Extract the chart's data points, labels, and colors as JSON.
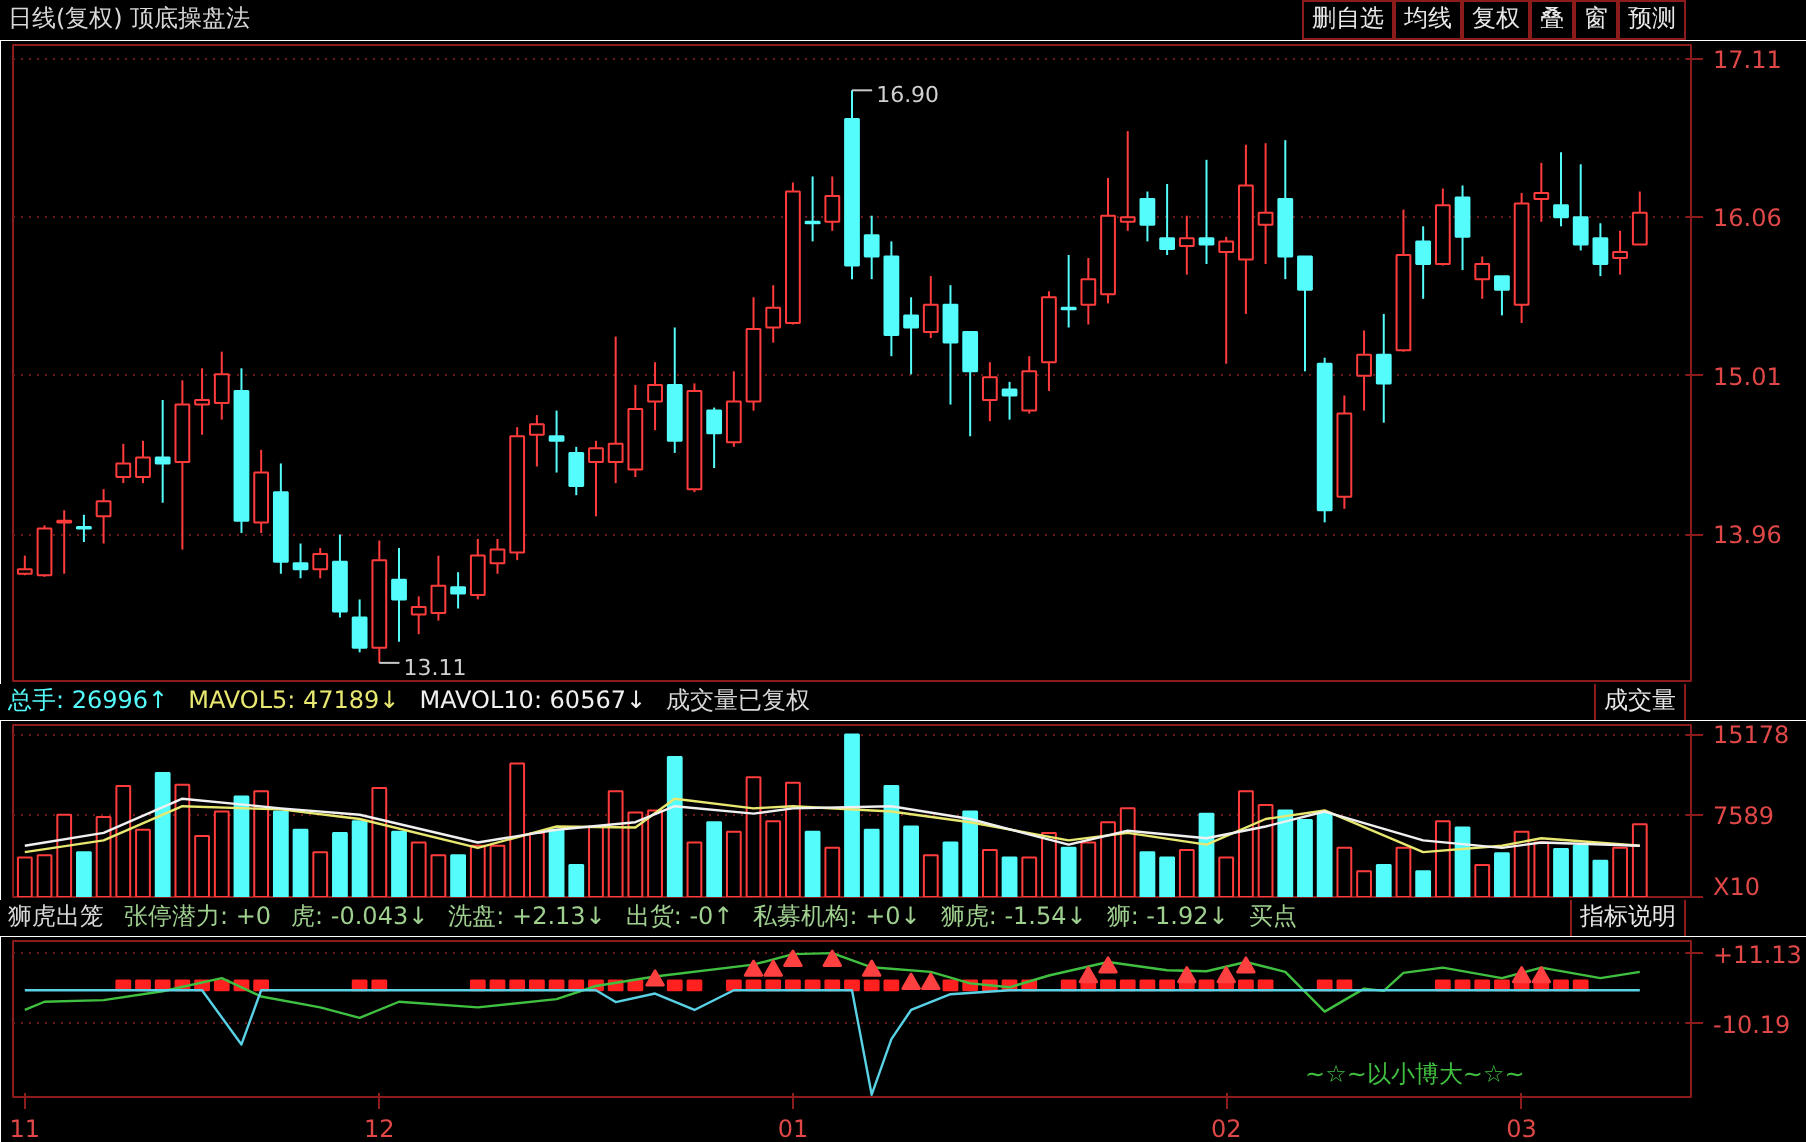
{
  "chart_data": [
    {
      "type": "candlestick",
      "title": "日线(复权) 顶底操盘法",
      "categories": [
        "11",
        null,
        null,
        null,
        null,
        null,
        null,
        null,
        null,
        null,
        null,
        null,
        null,
        null,
        null,
        null,
        null,
        null,
        "12",
        null,
        null,
        null,
        null,
        null,
        null,
        null,
        null,
        null,
        null,
        null,
        null,
        null,
        null,
        null,
        null,
        null,
        null,
        null,
        null,
        "01",
        null,
        null,
        null,
        null,
        null,
        null,
        null,
        null,
        null,
        null,
        null,
        null,
        null,
        null,
        null,
        null,
        null,
        null,
        null,
        null,
        null,
        "02",
        null,
        null,
        null,
        null,
        null,
        null,
        null,
        null,
        null,
        null,
        null,
        null,
        null,
        null,
        "03",
        null,
        null,
        null,
        null,
        null,
        null
      ],
      "ohlc": [
        [
          13.7,
          13.82,
          13.69,
          13.73
        ],
        [
          13.69,
          14.02,
          13.68,
          14.0
        ],
        [
          14.04,
          14.12,
          13.7,
          14.05
        ],
        [
          14.01,
          14.09,
          13.91,
          14.0
        ],
        [
          14.08,
          14.26,
          13.9,
          14.18
        ],
        [
          14.34,
          14.56,
          14.3,
          14.43
        ],
        [
          14.34,
          14.58,
          14.3,
          14.47
        ],
        [
          14.47,
          14.85,
          14.17,
          14.43
        ],
        [
          14.44,
          14.98,
          13.86,
          14.82
        ],
        [
          14.82,
          15.06,
          14.62,
          14.85
        ],
        [
          14.83,
          15.17,
          14.72,
          15.02
        ],
        [
          14.91,
          15.06,
          13.97,
          14.05
        ],
        [
          14.04,
          14.52,
          13.97,
          14.37
        ],
        [
          14.24,
          14.43,
          13.7,
          13.78
        ],
        [
          13.77,
          13.9,
          13.67,
          13.73
        ],
        [
          13.73,
          13.87,
          13.67,
          13.83
        ],
        [
          13.78,
          13.96,
          13.41,
          13.45
        ],
        [
          13.41,
          13.53,
          13.18,
          13.21
        ],
        [
          13.21,
          13.92,
          13.11,
          13.79
        ],
        [
          13.66,
          13.87,
          13.25,
          13.53
        ],
        [
          13.43,
          13.55,
          13.3,
          13.48
        ],
        [
          13.44,
          13.82,
          13.39,
          13.62
        ],
        [
          13.61,
          13.71,
          13.47,
          13.57
        ],
        [
          13.56,
          13.93,
          13.53,
          13.82
        ],
        [
          13.77,
          13.93,
          13.7,
          13.86
        ],
        [
          13.84,
          14.67,
          13.79,
          14.61
        ],
        [
          14.62,
          14.75,
          14.41,
          14.69
        ],
        [
          14.61,
          14.78,
          14.37,
          14.58
        ],
        [
          14.5,
          14.54,
          14.22,
          14.28
        ],
        [
          14.44,
          14.58,
          14.08,
          14.53
        ],
        [
          14.44,
          15.27,
          14.3,
          14.56
        ],
        [
          14.39,
          14.95,
          14.34,
          14.79
        ],
        [
          14.84,
          15.1,
          14.65,
          14.95
        ],
        [
          14.95,
          15.33,
          14.5,
          14.58
        ],
        [
          14.26,
          14.96,
          14.24,
          14.91
        ],
        [
          14.78,
          14.8,
          14.4,
          14.63
        ],
        [
          14.57,
          15.04,
          14.54,
          14.84
        ],
        [
          14.84,
          15.53,
          14.78,
          15.32
        ],
        [
          15.33,
          15.61,
          15.23,
          15.46
        ],
        [
          15.36,
          16.29,
          15.35,
          16.23
        ],
        [
          16.03,
          16.33,
          15.9,
          16.02
        ],
        [
          16.03,
          16.33,
          15.97,
          16.2
        ],
        [
          16.71,
          16.9,
          15.65,
          15.74
        ],
        [
          15.94,
          16.07,
          15.65,
          15.8
        ],
        [
          15.8,
          15.9,
          15.14,
          15.28
        ],
        [
          15.41,
          15.53,
          15.02,
          15.33
        ],
        [
          15.3,
          15.67,
          15.26,
          15.48
        ],
        [
          15.48,
          15.61,
          14.82,
          15.23
        ],
        [
          15.3,
          15.3,
          14.61,
          15.04
        ],
        [
          14.85,
          15.1,
          14.71,
          15.0
        ],
        [
          14.92,
          14.97,
          14.72,
          14.88
        ],
        [
          14.78,
          15.14,
          14.76,
          15.04
        ],
        [
          15.1,
          15.57,
          14.91,
          15.53
        ],
        [
          15.46,
          15.81,
          15.33,
          15.45
        ],
        [
          15.48,
          15.79,
          15.35,
          15.65
        ],
        [
          15.55,
          16.32,
          15.49,
          16.07
        ],
        [
          16.03,
          16.63,
          15.97,
          16.06
        ],
        [
          16.18,
          16.23,
          15.9,
          16.01
        ],
        [
          15.92,
          16.28,
          15.81,
          15.85
        ],
        [
          15.87,
          16.07,
          15.68,
          15.92
        ],
        [
          15.92,
          16.44,
          15.75,
          15.88
        ],
        [
          15.83,
          15.93,
          15.09,
          15.9
        ],
        [
          15.78,
          16.54,
          15.42,
          16.27
        ],
        [
          16.01,
          16.55,
          15.75,
          16.09
        ],
        [
          16.18,
          16.57,
          15.65,
          15.8
        ],
        [
          15.8,
          15.8,
          15.04,
          15.58
        ],
        [
          15.09,
          15.13,
          14.04,
          14.12
        ],
        [
          14.21,
          14.88,
          14.13,
          14.76
        ],
        [
          15.01,
          15.31,
          14.78,
          15.15
        ],
        [
          15.15,
          15.42,
          14.7,
          14.96
        ],
        [
          15.18,
          16.11,
          15.17,
          15.81
        ],
        [
          15.9,
          16.0,
          15.52,
          15.75
        ],
        [
          15.75,
          16.25,
          15.74,
          16.14
        ],
        [
          16.19,
          16.27,
          15.71,
          15.93
        ],
        [
          15.65,
          15.8,
          15.52,
          15.75
        ],
        [
          15.67,
          15.67,
          15.41,
          15.58
        ],
        [
          15.48,
          16.22,
          15.36,
          16.15
        ],
        [
          16.18,
          16.42,
          16.03,
          16.22
        ],
        [
          16.14,
          16.49,
          16.0,
          16.06
        ],
        [
          16.06,
          16.41,
          15.84,
          15.88
        ],
        [
          15.92,
          16.02,
          15.67,
          15.75
        ],
        [
          15.79,
          15.97,
          15.68,
          15.83
        ],
        [
          15.88,
          16.23,
          15.88,
          16.09
        ]
      ],
      "colors": [
        "#ff3c3c",
        "#ff3c3c",
        "#ff3c3c",
        "#54fcfc",
        "#ff3c3c",
        "#ff3c3c",
        "#ff3c3c",
        "#54fcfc",
        "#ff3c3c",
        "#ff3c3c",
        "#ff3c3c",
        "#54fcfc",
        "#ff3c3c",
        "#54fcfc",
        "#54fcfc",
        "#ff3c3c",
        "#54fcfc",
        "#54fcfc",
        "#ff3c3c",
        "#54fcfc",
        "#ff3c3c",
        "#ff3c3c",
        "#54fcfc",
        "#ff3c3c",
        "#ff3c3c",
        "#ff3c3c",
        "#ff3c3c",
        "#54fcfc",
        "#54fcfc",
        "#ff3c3c",
        "#ff3c3c",
        "#ff3c3c",
        "#ff3c3c",
        "#54fcfc",
        "#ff3c3c",
        "#54fcfc",
        "#ff3c3c",
        "#ff3c3c",
        "#ff3c3c",
        "#ff3c3c",
        "#54fcfc",
        "#ff3c3c",
        "#54fcfc",
        "#54fcfc",
        "#54fcfc",
        "#54fcfc",
        "#ff3c3c",
        "#54fcfc",
        "#54fcfc",
        "#ff3c3c",
        "#54fcfc",
        "#ff3c3c",
        "#ff3c3c",
        "#54fcfc",
        "#ff3c3c",
        "#ff3c3c",
        "#ff3c3c",
        "#54fcfc",
        "#54fcfc",
        "#ff3c3c",
        "#54fcfc",
        "#ff3c3c",
        "#ff3c3c",
        "#ff3c3c",
        "#54fcfc",
        "#54fcfc",
        "#54fcfc",
        "#ff3c3c",
        "#ff3c3c",
        "#54fcfc",
        "#ff3c3c",
        "#54fcfc",
        "#ff3c3c",
        "#54fcfc",
        "#ff3c3c",
        "#54fcfc",
        "#ff3c3c",
        "#ff3c3c",
        "#54fcfc",
        "#54fcfc",
        "#54fcfc",
        "#ff3c3c",
        "#ff3c3c"
      ],
      "ylim": [
        12.99,
        17.2
      ],
      "yticks": [
        13.96,
        15.01,
        16.06,
        17.11
      ],
      "grid": "y",
      "tick_labels": "y",
      "annotations": [
        "删自选",
        "均线",
        "复权",
        "叠",
        "窗",
        "预测",
        "16.90",
        "13.11"
      ]
    },
    {
      "type": "bar",
      "subtitle": "成交量已复权",
      "categories": [
        "11",
        null,
        null,
        null,
        null,
        null,
        null,
        null,
        null,
        null,
        null,
        null,
        null,
        null,
        null,
        null,
        null,
        null,
        "12",
        null,
        null,
        null,
        null,
        null,
        null,
        null,
        null,
        null,
        null,
        null,
        null,
        null,
        null,
        null,
        null,
        null,
        null,
        null,
        null,
        "01",
        null,
        null,
        null,
        null,
        null,
        null,
        null,
        null,
        null,
        null,
        null,
        null,
        null,
        null,
        null,
        null,
        null,
        null,
        null,
        null,
        null,
        "02",
        null,
        null,
        null,
        null,
        null,
        null,
        null,
        null,
        null,
        null,
        null,
        null,
        null,
        null,
        "03",
        null,
        null,
        null,
        null,
        null,
        null
      ],
      "series": [
        {
          "name": "总手: 26996↑",
          "color": "#54fcfc",
          "colors": [
            "#ff3c3c",
            "#ff3c3c",
            "#ff3c3c",
            "#54fcfc",
            "#ff3c3c",
            "#ff3c3c",
            "#ff3c3c",
            "#54fcfc",
            "#ff3c3c",
            "#ff3c3c",
            "#ff3c3c",
            "#54fcfc",
            "#ff3c3c",
            "#54fcfc",
            "#54fcfc",
            "#ff3c3c",
            "#54fcfc",
            "#54fcfc",
            "#ff3c3c",
            "#54fcfc",
            "#ff3c3c",
            "#ff3c3c",
            "#54fcfc",
            "#ff3c3c",
            "#ff3c3c",
            "#ff3c3c",
            "#ff3c3c",
            "#54fcfc",
            "#54fcfc",
            "#ff3c3c",
            "#ff3c3c",
            "#ff3c3c",
            "#ff3c3c",
            "#54fcfc",
            "#ff3c3c",
            "#54fcfc",
            "#ff3c3c",
            "#ff3c3c",
            "#ff3c3c",
            "#ff3c3c",
            "#54fcfc",
            "#ff3c3c",
            "#54fcfc",
            "#54fcfc",
            "#54fcfc",
            "#54fcfc",
            "#ff3c3c",
            "#54fcfc",
            "#54fcfc",
            "#ff3c3c",
            "#54fcfc",
            "#ff3c3c",
            "#ff3c3c",
            "#54fcfc",
            "#ff3c3c",
            "#ff3c3c",
            "#ff3c3c",
            "#54fcfc",
            "#54fcfc",
            "#ff3c3c",
            "#54fcfc",
            "#ff3c3c",
            "#ff3c3c",
            "#ff3c3c",
            "#54fcfc",
            "#54fcfc",
            "#54fcfc",
            "#ff3c3c",
            "#ff3c3c",
            "#54fcfc",
            "#ff3c3c",
            "#54fcfc",
            "#ff3c3c",
            "#54fcfc",
            "#ff3c3c",
            "#54fcfc",
            "#ff3c3c",
            "#ff3c3c",
            "#54fcfc",
            "#54fcfc",
            "#54fcfc",
            "#ff3c3c",
            "#ff3c3c"
          ],
          "values": [
            3700,
            3900,
            7700,
            4200,
            7500,
            10400,
            6300,
            11600,
            10500,
            5700,
            8000,
            9400,
            9900,
            8000,
            6300,
            4200,
            6000,
            7100,
            10200,
            6100,
            5100,
            3900,
            3900,
            4800,
            4800,
            12500,
            6000,
            6300,
            3000,
            6600,
            9900,
            7900,
            8100,
            13100,
            5100,
            7000,
            6100,
            11200,
            7100,
            10700,
            6100,
            4600,
            15200,
            6300,
            10400,
            6600,
            3900,
            5100,
            8000,
            4400,
            3700,
            3700,
            6000,
            4600,
            5100,
            7000,
            8300,
            4200,
            3700,
            4400,
            7800,
            3700,
            9900,
            8600,
            8100,
            7200,
            7800,
            4600,
            2400,
            3000,
            4600,
            2400,
            7100,
            6500,
            3000,
            4100,
            6100,
            5100,
            4500,
            4800,
            3400,
            4600,
            6800
          ]
        },
        {
          "type": "line",
          "name": "MAVOL5: 47189↓",
          "color": "#e8e870",
          "values": [
            4200,
            null,
            null,
            null,
            5300,
            null,
            null,
            null,
            8500,
            null,
            null,
            null,
            null,
            8200,
            null,
            null,
            null,
            7300,
            null,
            null,
            null,
            null,
            null,
            4600,
            null,
            null,
            null,
            6600,
            null,
            null,
            null,
            6500,
            null,
            9200,
            null,
            null,
            null,
            8300,
            null,
            8500,
            null,
            null,
            null,
            null,
            8000,
            null,
            null,
            null,
            7000,
            null,
            null,
            null,
            null,
            5300,
            null,
            null,
            6000,
            null,
            null,
            null,
            4900,
            null,
            null,
            7300,
            null,
            null,
            8100,
            null,
            null,
            null,
            null,
            4200,
            null,
            null,
            null,
            4800,
            null,
            5500,
            null,
            null,
            null,
            null,
            4800
          ]
        },
        {
          "type": "line",
          "name": "MAVOL10: 60567↓",
          "color": "#f0f0f0",
          "values": [
            4800,
            null,
            null,
            null,
            6000,
            null,
            null,
            null,
            9200,
            null,
            null,
            null,
            null,
            8300,
            null,
            null,
            null,
            7700,
            null,
            null,
            null,
            null,
            null,
            5100,
            null,
            null,
            null,
            6300,
            null,
            null,
            null,
            7000,
            null,
            8500,
            null,
            null,
            null,
            7800,
            null,
            8300,
            null,
            null,
            null,
            null,
            8500,
            null,
            null,
            null,
            7300,
            null,
            null,
            null,
            null,
            4900,
            null,
            null,
            6200,
            null,
            null,
            null,
            5500,
            null,
            null,
            6600,
            null,
            null,
            8000,
            null,
            null,
            null,
            null,
            5300,
            null,
            null,
            null,
            4600,
            null,
            5100,
            null,
            null,
            null,
            null,
            4800
          ]
        }
      ],
      "ylim": [
        0,
        16100
      ],
      "yticks": [
        {
          "value": 0,
          "label": "X10"
        },
        7589,
        15178
      ],
      "grid": "y",
      "tick_labels": "y",
      "annotations": [
        "成交量"
      ]
    },
    {
      "type": "line",
      "title": "狮虎出笼",
      "categories": [
        "11",
        null,
        null,
        null,
        null,
        null,
        null,
        null,
        null,
        null,
        null,
        null,
        null,
        null,
        null,
        null,
        null,
        null,
        "12",
        null,
        null,
        null,
        null,
        null,
        null,
        null,
        null,
        null,
        null,
        null,
        null,
        null,
        null,
        null,
        null,
        null,
        null,
        null,
        null,
        "01",
        null,
        null,
        null,
        null,
        null,
        null,
        null,
        null,
        null,
        null,
        null,
        null,
        null,
        null,
        null,
        null,
        null,
        null,
        null,
        null,
        null,
        "02",
        null,
        null,
        null,
        null,
        null,
        null,
        null,
        null,
        null,
        null,
        null,
        null,
        null,
        null,
        "03",
        null,
        null,
        null,
        null,
        null,
        null
      ],
      "series": [
        {
          "type": "bar",
          "color": "#ff2020",
          "values": [
            null,
            null,
            null,
            null,
            null,
            3,
            3,
            3,
            3,
            3,
            3,
            3,
            3,
            null,
            null,
            null,
            null,
            3,
            3,
            null,
            null,
            null,
            null,
            3,
            3,
            3,
            3,
            3,
            3,
            3,
            3,
            3,
            null,
            3,
            3,
            null,
            3,
            3,
            3,
            3,
            3,
            3,
            3,
            3,
            3,
            null,
            null,
            3,
            3,
            3,
            3,
            3,
            null,
            3,
            3,
            3,
            3,
            3,
            3,
            3,
            3,
            3,
            3,
            3,
            null,
            null,
            3,
            3,
            null,
            null,
            null,
            null,
            3,
            3,
            3,
            3,
            3,
            3,
            3,
            3,
            null,
            null,
            null
          ]
        },
        {
          "type": "line",
          "color": "#40c040",
          "values": [
            -6.0,
            -3.5,
            null,
            null,
            -3.0,
            null,
            null,
            -0.3,
            null,
            null,
            3.7,
            null,
            -1.9,
            null,
            null,
            -5.2,
            null,
            -8.4,
            null,
            -3.5,
            null,
            null,
            null,
            -5.2,
            null,
            null,
            null,
            -2.7,
            null,
            1.3,
            null,
            null,
            4.2,
            null,
            null,
            null,
            null,
            7.8,
            null,
            11.0,
            null,
            11.3,
            null,
            7.0,
            null,
            null,
            5.6,
            null,
            2.1,
            null,
            0.9,
            null,
            4.5,
            null,
            null,
            8.6,
            null,
            null,
            6.1,
            null,
            5.8,
            null,
            8.6,
            null,
            5.6,
            null,
            -6.5,
            null,
            0.5,
            -0.2,
            5.3,
            null,
            6.9,
            null,
            null,
            3.7,
            null,
            6.9,
            null,
            null,
            3.7,
            null,
            5.6
          ]
        },
        {
          "type": "line",
          "color": "#5ad2e6",
          "values": [
            0,
            null,
            null,
            null,
            null,
            null,
            null,
            null,
            null,
            0,
            null,
            -16.5,
            0,
            null,
            null,
            null,
            null,
            null,
            null,
            null,
            null,
            null,
            null,
            null,
            null,
            null,
            null,
            null,
            null,
            0,
            -3.6,
            null,
            -1,
            null,
            -6.0,
            null,
            0,
            null,
            null,
            null,
            null,
            null,
            0,
            -31.8,
            -14.9,
            -6.0,
            null,
            -1.2,
            null,
            null,
            0,
            null,
            null,
            null,
            null,
            null,
            null,
            null,
            null,
            null,
            null,
            null,
            null,
            null,
            null,
            null,
            null,
            null,
            null,
            null,
            null,
            null,
            null,
            null,
            null,
            null,
            null,
            null,
            null,
            null,
            null,
            null,
            0
          ]
        },
        {
          "type": "scatter",
          "marker": "triangle",
          "color": "#ff4040",
          "values": [
            null,
            null,
            null,
            null,
            null,
            null,
            null,
            null,
            null,
            null,
            null,
            null,
            null,
            null,
            null,
            null,
            null,
            null,
            null,
            null,
            null,
            null,
            null,
            null,
            null,
            null,
            null,
            null,
            null,
            null,
            null,
            null,
            3,
            null,
            null,
            null,
            null,
            6,
            6,
            9,
            null,
            9,
            null,
            6,
            null,
            2,
            2,
            null,
            null,
            null,
            null,
            null,
            null,
            null,
            4,
            7,
            null,
            null,
            null,
            4,
            null,
            4,
            7,
            null,
            null,
            null,
            null,
            null,
            null,
            null,
            null,
            null,
            null,
            null,
            null,
            null,
            4,
            4,
            null,
            null,
            null,
            null,
            null
          ]
        }
      ],
      "ylim": [
        -32.5,
        15
      ],
      "yticks": [
        -10.19,
        {
          "value": 11.13,
          "label": "+11.13"
        }
      ],
      "grid": "y",
      "annotations": [
        "张停潜力: +0",
        "虎: -0.043↓",
        "洗盘: +2.13↓",
        "出货: -0↑",
        "私募机构: +0↓",
        "狮虎: -1.54↓",
        "狮: -1.92↓",
        "买点",
        "指标说明",
        "~☆~以小博大~☆~"
      ]
    }
  ]
}
